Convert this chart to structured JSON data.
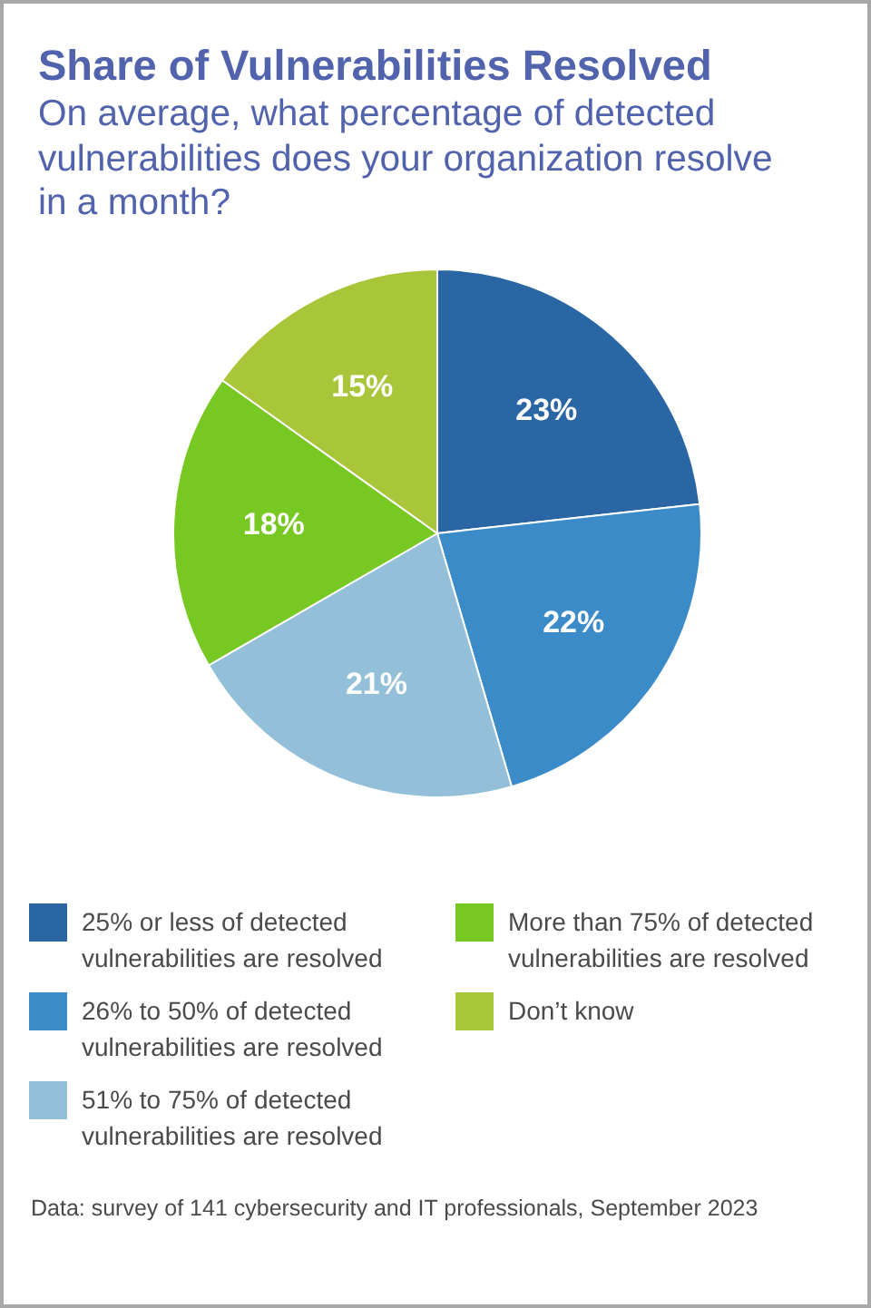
{
  "chart_data": {
    "type": "pie",
    "title": "Share of Vulnerabilities Resolved",
    "subtitle": "On average, what percentage of detected vulnerabilities does your organization resolve in a month?",
    "categories": [
      "25% or less of detected vulnerabilities are resolved",
      "26% to 50% of detected vulnerabilities are resolved",
      "51% to 75% of detected vulnerabilities are resolved",
      "More than 75% of detected vulnerabilities are resolved",
      "Don’t know"
    ],
    "values": [
      23,
      22,
      21,
      18,
      15
    ],
    "value_labels": [
      "23%",
      "22%",
      "21%",
      "18%",
      "15%"
    ],
    "colors": [
      "#2966a3",
      "#3a8bc8",
      "#93c0d8",
      "#78c823",
      "#a9c63b"
    ],
    "legend": "bottom",
    "annotations": [
      "Data: survey of 141 cybersecurity and IT professionals, September 2023"
    ]
  }
}
